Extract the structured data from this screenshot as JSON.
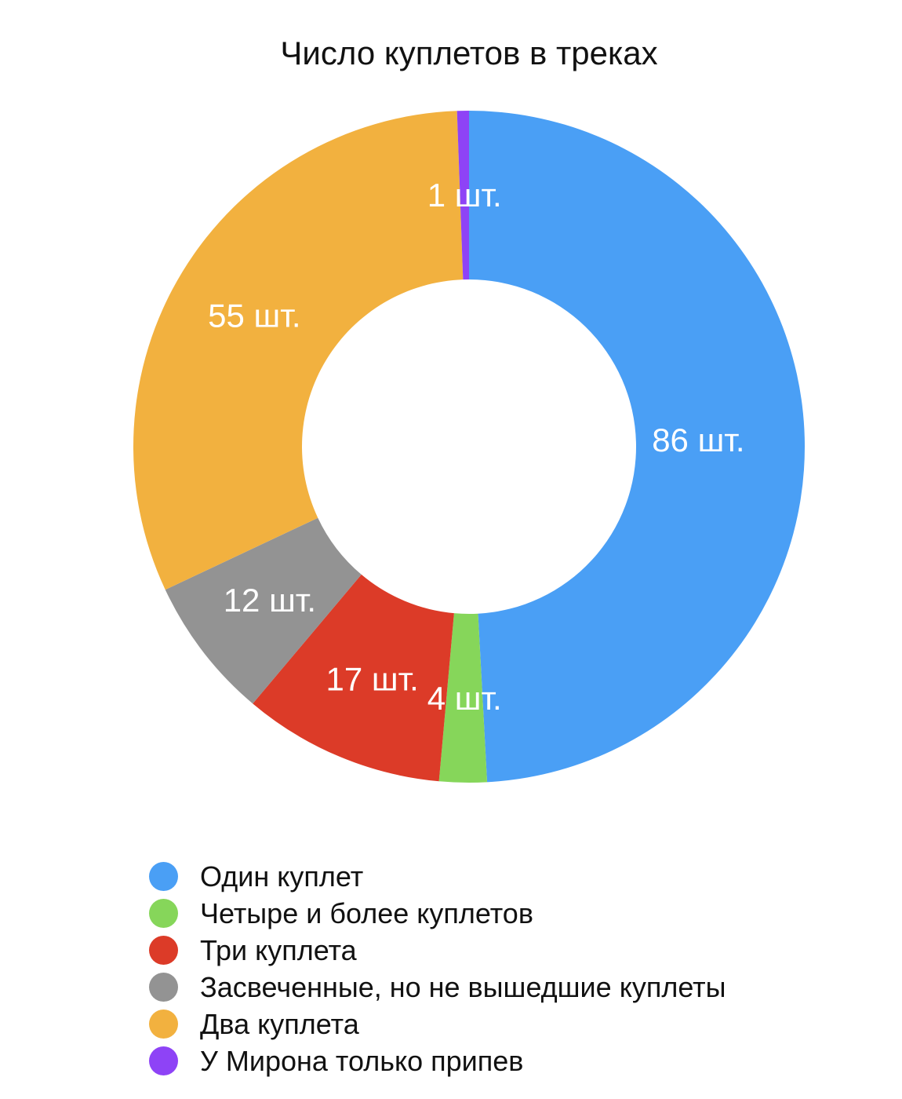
{
  "chart_data": {
    "type": "pie",
    "title": "Число куплетов в треках",
    "donut": true,
    "legend_position": "bottom",
    "slices": [
      {
        "name": "Один куплет",
        "value": 86,
        "label": "86 шт.",
        "color": "#4A9FF5"
      },
      {
        "name": "Четыре и более куплетов",
        "value": 4,
        "label": "4 шт.",
        "color": "#86D65A"
      },
      {
        "name": "Три куплета",
        "value": 17,
        "label": "17 шт.",
        "color": "#DC3B28"
      },
      {
        "name": "Засвеченные, но не вышедшие куплеты",
        "value": 12,
        "label": "12 шт.",
        "color": "#939393"
      },
      {
        "name": "Два куплета",
        "value": 55,
        "label": "55 шт.",
        "color": "#F2B13F"
      },
      {
        "name": "У Мирона только припев",
        "value": 1,
        "label": "1 шт.",
        "color": "#8E43F6"
      }
    ]
  }
}
